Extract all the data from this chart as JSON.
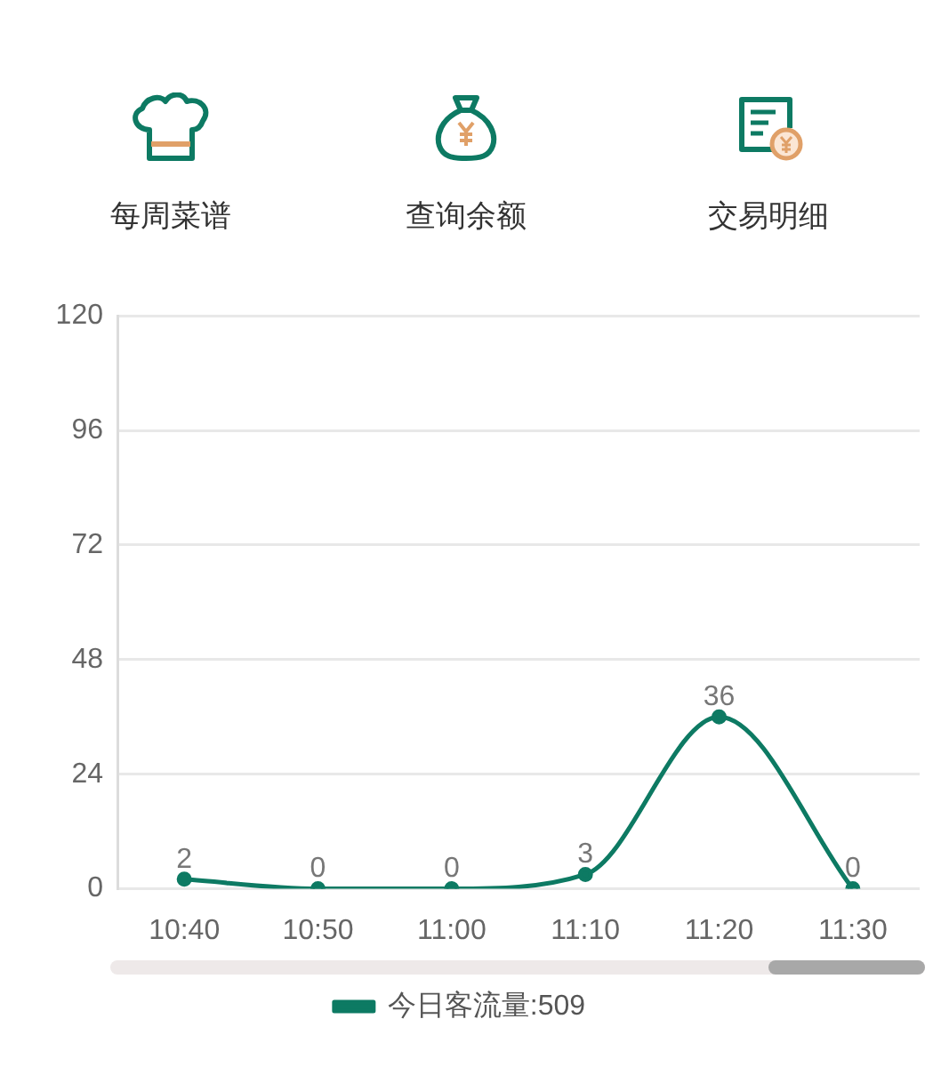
{
  "chart_data": [
    {
      "type": "other",
      "annotations": [
        "每周菜谱",
        "查询余额",
        "交易明细"
      ]
    },
    {
      "type": "line",
      "categories": [
        "10:40",
        "10:50",
        "11:00",
        "11:10",
        "11:20",
        "11:30"
      ],
      "series": [
        {
          "name": "今日客流量:509",
          "color": "#0d7a63",
          "values": [
            2,
            0,
            0,
            3,
            36,
            0
          ]
        }
      ],
      "ylim": [
        0,
        120
      ],
      "yticks": [
        0,
        24,
        48,
        72,
        96,
        120
      ],
      "grid": "y",
      "legend": "bottom",
      "marker": "circle",
      "line_style": "solid",
      "data_labels": true
    }
  ]
}
